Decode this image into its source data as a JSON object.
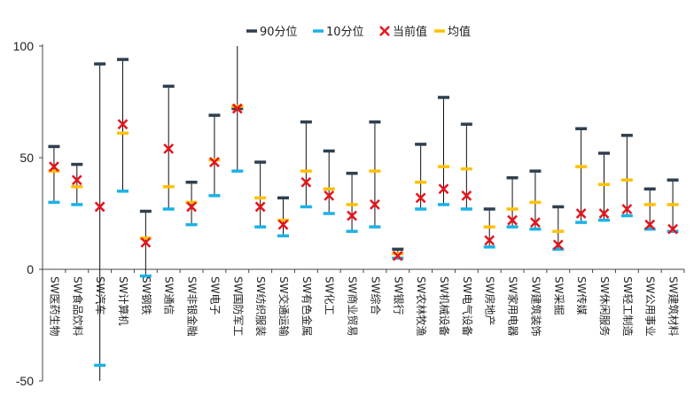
{
  "chart_data": {
    "type": "range",
    "legend_position": "top",
    "legend": [
      {
        "key": "p90",
        "label": "90分位",
        "marker": "dash",
        "color": "#2f3f4f"
      },
      {
        "key": "p10",
        "label": "10分位",
        "marker": "dash",
        "color": "#1ab2e8"
      },
      {
        "key": "current",
        "label": "当前值",
        "marker": "x",
        "color": "#e8141c"
      },
      {
        "key": "mean",
        "label": "均值",
        "marker": "dash",
        "color": "#ffc000"
      }
    ],
    "ylim": [
      -50,
      100
    ],
    "yticks": [
      -50,
      0,
      50,
      100
    ],
    "categories": [
      "SW医药生物",
      "SW食品饮料",
      "SW汽车",
      "SW计算机",
      "SW钢铁",
      "SW通信",
      "SW非银金融",
      "SW电子",
      "SW国防军工",
      "SW纺织服装",
      "SW交通运输",
      "SW有色金属",
      "SW化工",
      "SW商业贸易",
      "SW综合",
      "SW银行",
      "SW农林牧渔",
      "SW机械设备",
      "SW电气设备",
      "SW房地产",
      "SW家用电器",
      "SW建筑装饰",
      "SW采掘",
      "SW传媒",
      "SW休闲服务",
      "SW轻工制造",
      "SW公用事业",
      "SW建筑材料"
    ],
    "series": [
      {
        "key": "max",
        "values": [
          55,
          47,
          92,
          94,
          26,
          82,
          39,
          69,
          100,
          48,
          32,
          66,
          53,
          43,
          66,
          9,
          56,
          77,
          65,
          27,
          41,
          44,
          28,
          63,
          52,
          60,
          36,
          40
        ]
      },
      {
        "key": "min",
        "values": [
          30,
          29,
          -50,
          35,
          -3,
          27,
          20,
          33,
          44,
          19,
          15,
          28,
          25,
          17,
          19,
          5,
          27,
          29,
          27,
          10,
          19,
          18,
          9,
          21,
          22,
          24,
          18,
          17
        ]
      },
      {
        "key": "p90",
        "name": "90分位",
        "values": [
          55,
          47,
          92,
          94,
          26,
          82,
          39,
          69,
          72,
          48,
          32,
          66,
          53,
          43,
          66,
          9,
          56,
          77,
          65,
          27,
          41,
          44,
          28,
          63,
          52,
          60,
          36,
          40
        ]
      },
      {
        "key": "p10",
        "name": "10分位",
        "values": [
          30,
          29,
          -43,
          35,
          -3,
          27,
          20,
          33,
          44,
          19,
          15,
          28,
          25,
          17,
          19,
          5,
          27,
          29,
          27,
          10,
          19,
          18,
          9,
          21,
          22,
          24,
          18,
          17
        ]
      },
      {
        "key": "current",
        "name": "当前值",
        "values": [
          46,
          40,
          28,
          65,
          12,
          54,
          28,
          48,
          72,
          28,
          20,
          39,
          33,
          24,
          29,
          6,
          32,
          36,
          33,
          13,
          22,
          21,
          11,
          25,
          25,
          27,
          20,
          18
        ]
      },
      {
        "key": "mean",
        "name": "均值",
        "values": [
          44,
          37,
          null,
          61,
          14,
          37,
          30,
          49,
          73,
          32,
          22,
          44,
          36,
          29,
          44,
          7,
          39,
          46,
          45,
          19,
          27,
          30,
          17,
          46,
          38,
          40,
          29,
          29
        ]
      }
    ]
  }
}
